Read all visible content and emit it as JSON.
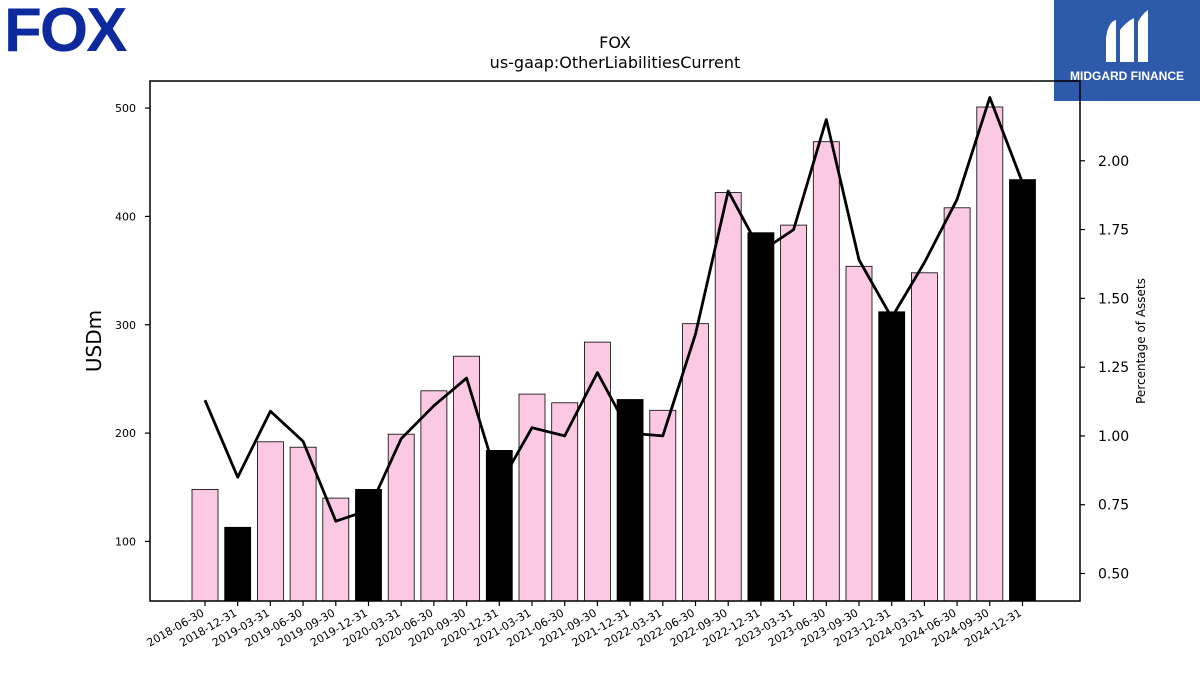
{
  "brand": {
    "company_logo": "FOX",
    "publisher_logo": "MIDGARD FINANCE",
    "company_color": "#0c2a9e",
    "publisher_color": "#2e5aac"
  },
  "chart_data": {
    "type": "bar",
    "title": "FOX",
    "subtitle": "us-gaap:OtherLiabilitiesCurrent",
    "ylabel": "USDm",
    "y2label": "Percentage of Assets",
    "ylim": [
      45,
      525
    ],
    "y2lim": [
      0.4,
      2.29
    ],
    "yticks": [
      100,
      200,
      300,
      400,
      500
    ],
    "y2ticks": [
      "0.50",
      "0.75",
      "1.00",
      "1.25",
      "1.50",
      "1.75",
      "2.00"
    ],
    "categories": [
      "2018-06-30",
      "2018-12-31",
      "2019-03-31",
      "2019-06-30",
      "2019-09-30",
      "2019-12-31",
      "2020-03-31",
      "2020-06-30",
      "2020-09-30",
      "2020-12-31",
      "2021-03-31",
      "2021-06-30",
      "2021-09-30",
      "2021-12-31",
      "2022-03-31",
      "2022-06-30",
      "2022-09-30",
      "2022-12-31",
      "2023-03-31",
      "2023-06-30",
      "2023-09-30",
      "2023-12-31",
      "2024-03-31",
      "2024-06-30",
      "2024-09-30",
      "2024-12-31"
    ],
    "series": [
      {
        "type": "bar",
        "values": [
          148,
          113,
          192,
          187,
          140,
          148,
          199,
          239,
          271,
          184,
          236,
          228,
          284,
          231,
          221,
          301,
          422,
          385,
          392,
          469,
          354,
          312,
          348,
          408,
          501,
          434
        ],
        "colors": {
          "default": "#fbc9e4",
          "highlight": "#000000"
        },
        "highlight": [
          false,
          true,
          false,
          false,
          false,
          true,
          false,
          false,
          false,
          true,
          false,
          false,
          false,
          true,
          false,
          false,
          false,
          true,
          false,
          false,
          false,
          true,
          false,
          false,
          false,
          true
        ]
      },
      {
        "type": "line",
        "axis": "right",
        "color": "#000000",
        "values": [
          1.13,
          0.85,
          1.09,
          0.98,
          0.69,
          0.73,
          0.99,
          1.11,
          1.21,
          0.82,
          1.03,
          1.0,
          1.23,
          1.01,
          1.0,
          1.37,
          1.89,
          1.67,
          1.75,
          2.15,
          1.64,
          1.43,
          1.63,
          1.86,
          2.23,
          1.92
        ]
      }
    ]
  }
}
